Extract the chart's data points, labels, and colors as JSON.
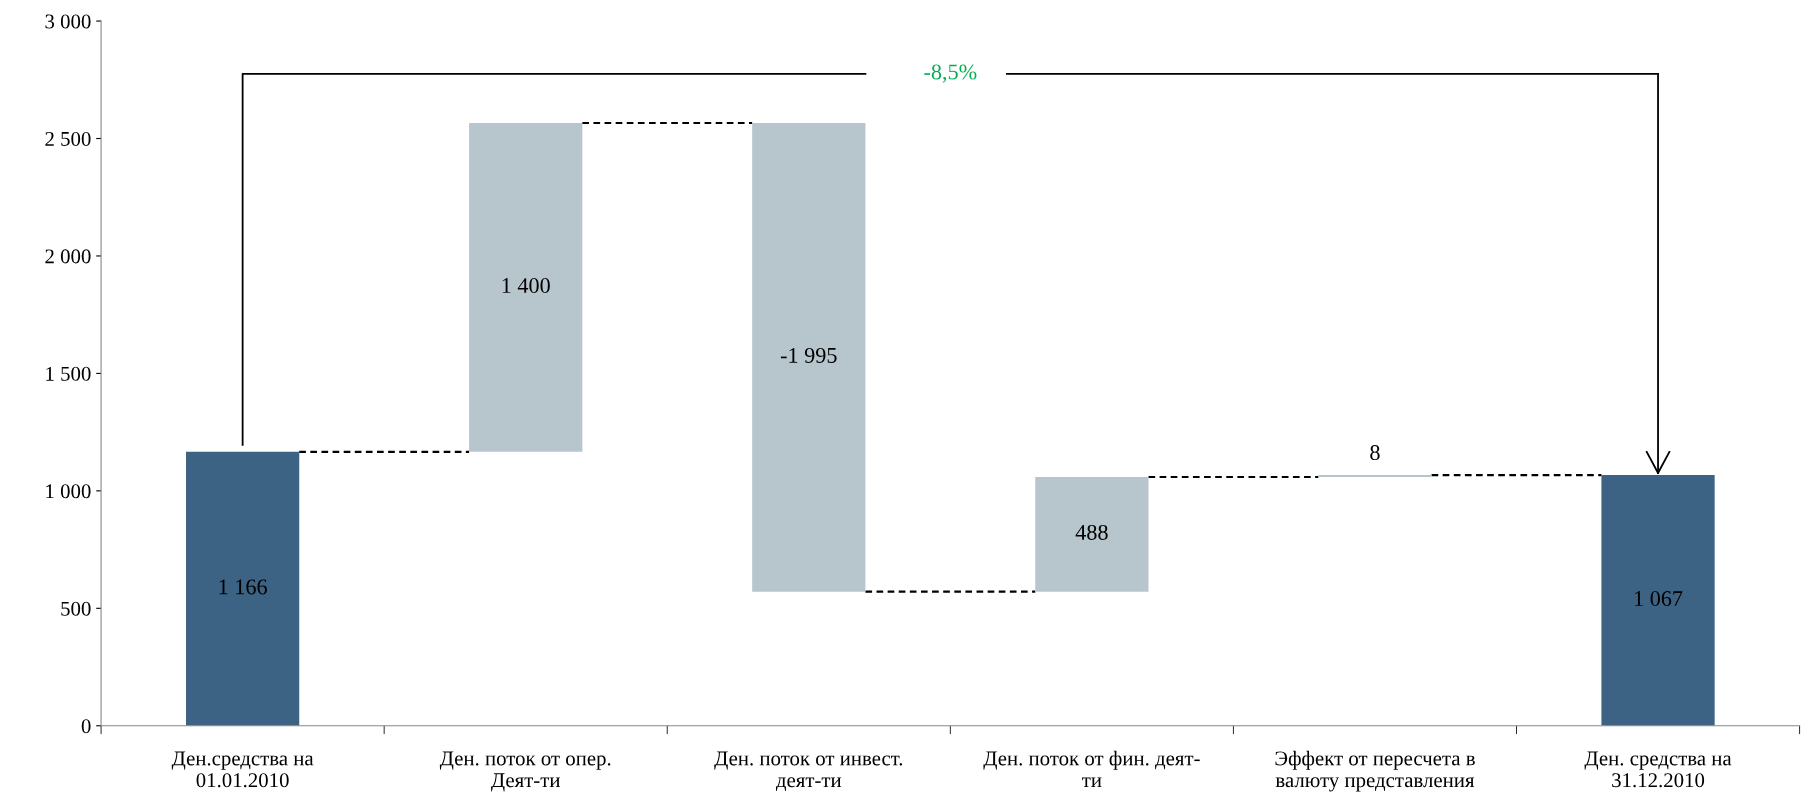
{
  "chart_data": {
    "type": "bar",
    "categories": [
      "Ден.средства на\n01.01.2010",
      "Ден. поток от опер.\nДеят-ти",
      "Ден. поток от инвест.\nдеят-ти",
      "Ден. поток от фин. деят-\nти",
      "Эффект от пересчета в\nвалюту представления",
      "Ден. средства на\n31.12.2010"
    ],
    "values": [
      1166,
      1400,
      -1995,
      488,
      8,
      1067
    ],
    "base": [
      0,
      1166,
      2566,
      571,
      1059,
      0
    ],
    "colors": [
      "#3d6384",
      "#b7c5cc",
      "#b7c5cc",
      "#b7c5cc",
      "#b7c5cc",
      "#3d6384"
    ],
    "value_labels": [
      "1 166",
      "1 400",
      "-1 995",
      "488",
      "8",
      "1 067"
    ],
    "ylim": [
      0,
      3000
    ],
    "yticks": [
      0,
      {
        "value": 500,
        "label": "500"
      },
      {
        "value": 1000,
        "label": "1 000"
      },
      {
        "value": 1500,
        "label": "1 500"
      },
      {
        "value": 2000,
        "label": "2 000"
      },
      {
        "value": 2500,
        "label": "2 500"
      },
      {
        "value": 3000,
        "label": "3 000"
      }
    ],
    "annotations": [
      "-8,5%"
    ],
    "grid": false
  }
}
